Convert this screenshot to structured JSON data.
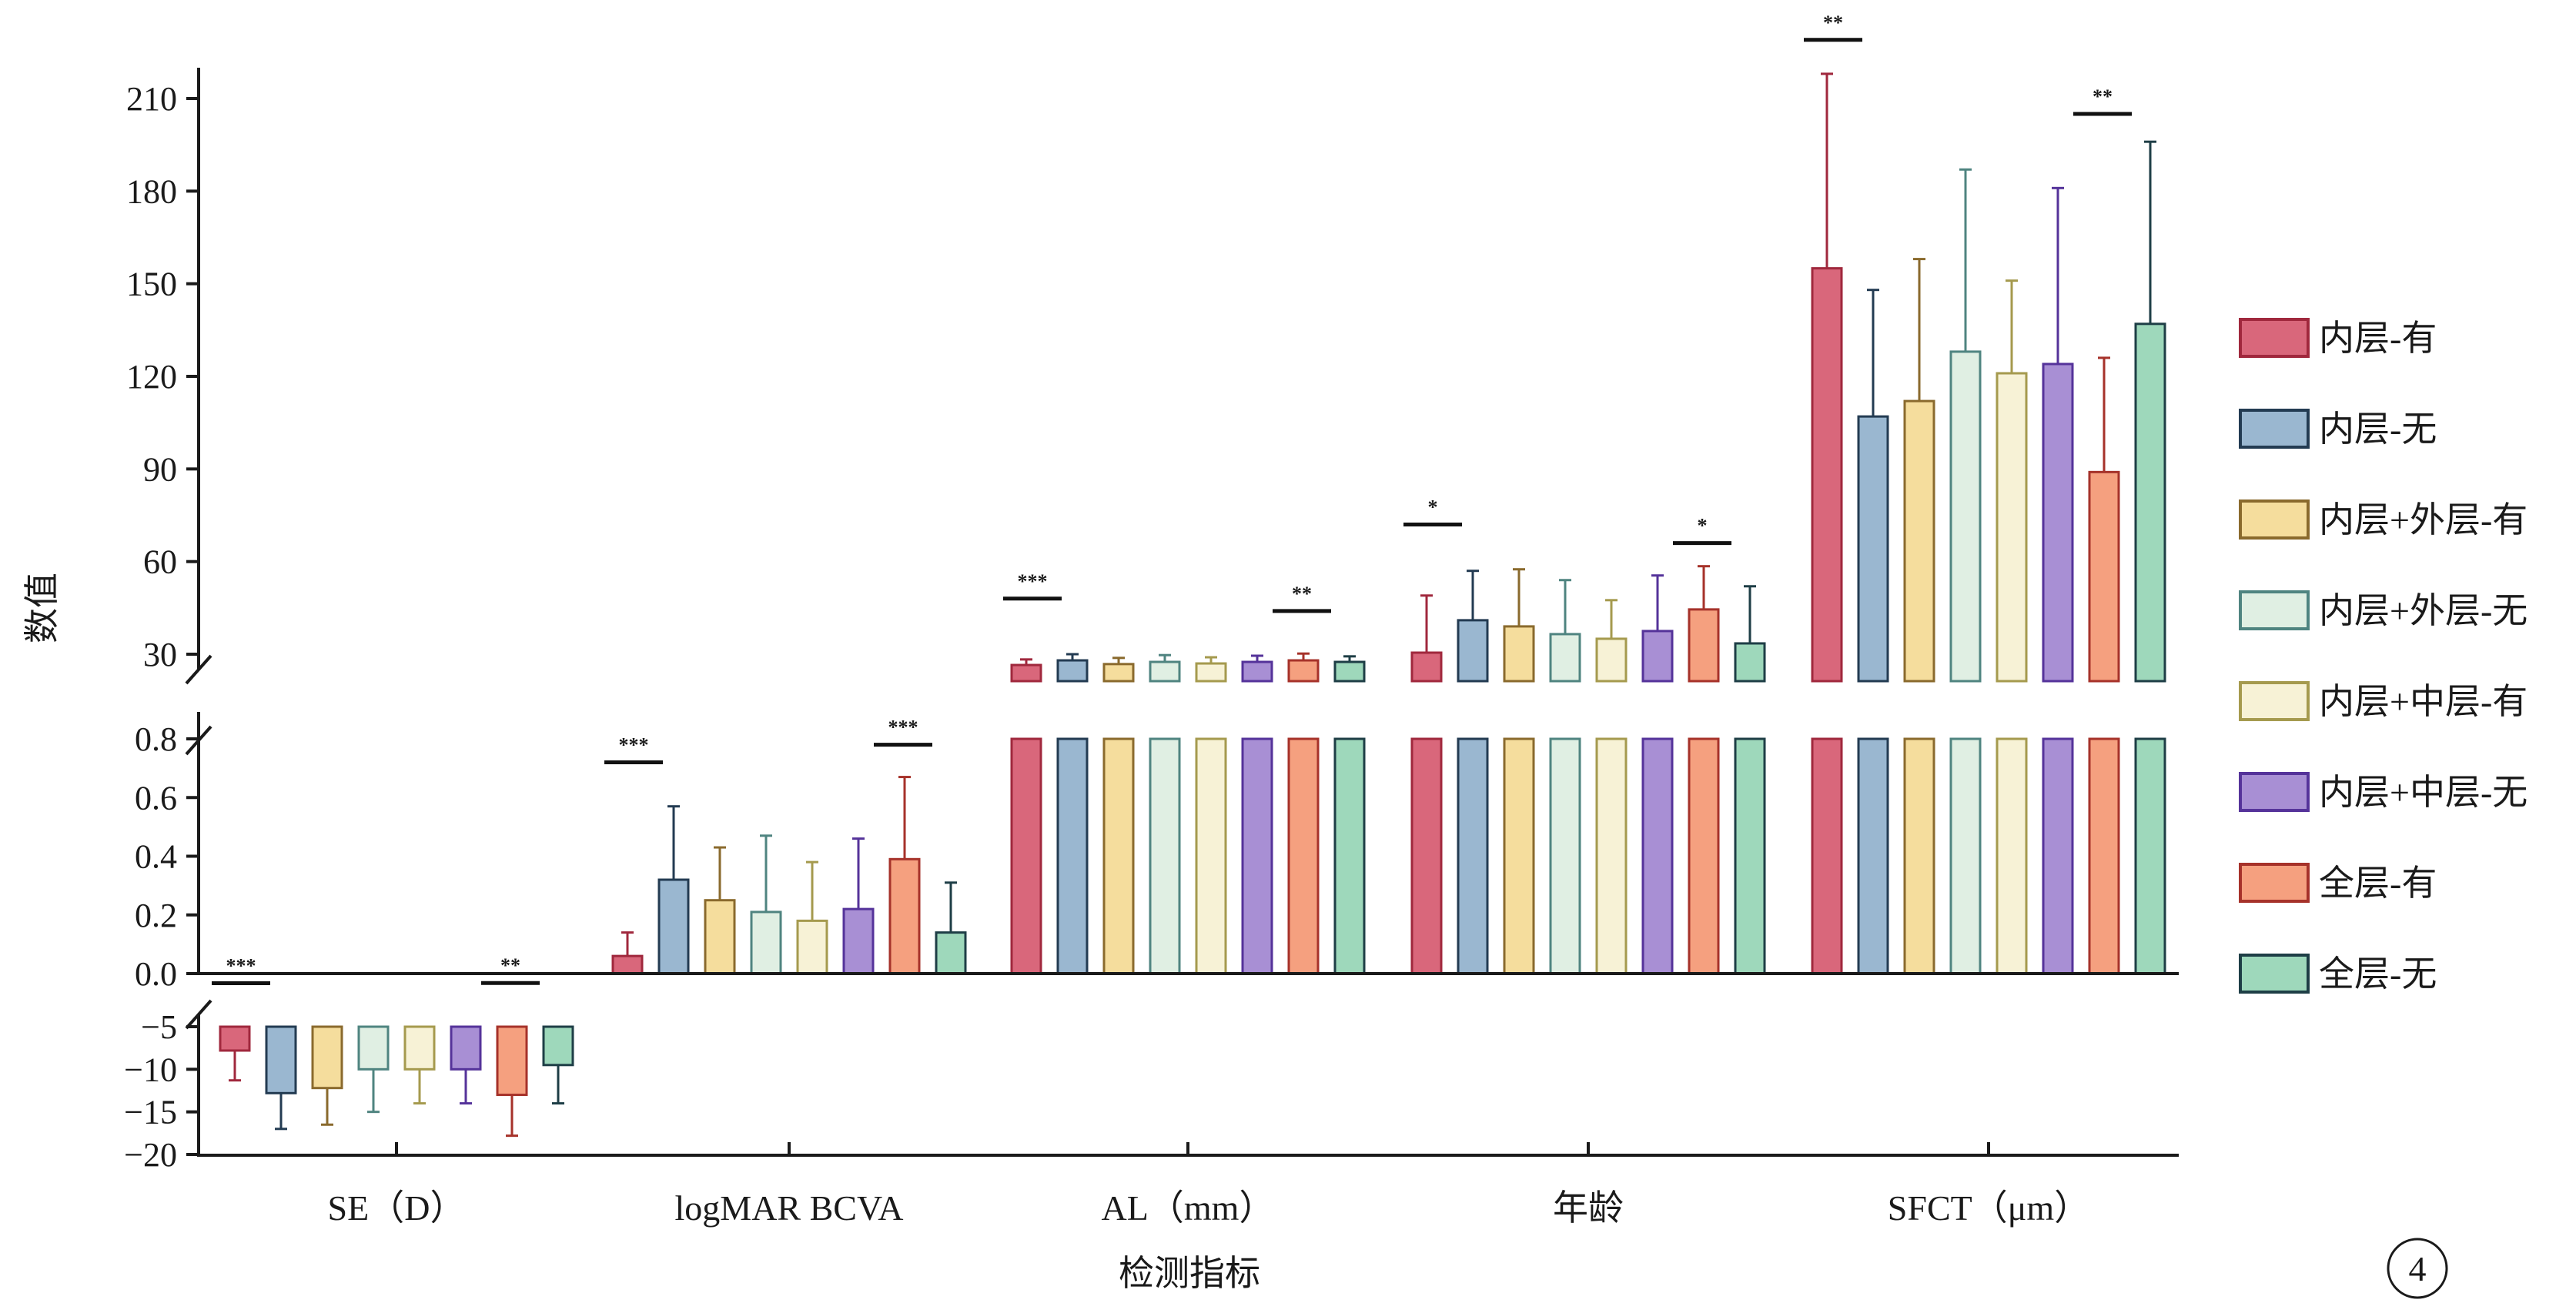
{
  "chart_data": {
    "type": "bar",
    "xlabel": "检测指标",
    "ylabel": "数值",
    "categories": [
      "SE（D）",
      "logMAR BCVA",
      "AL（mm）",
      "年龄",
      "SFCT（μm）"
    ],
    "series": [
      {
        "name": "内层-有",
        "color": "#d9677b",
        "edge": "#a0283d",
        "values": [
          -7.8,
          0.06,
          26.5,
          30.5,
          155
        ],
        "errors": [
          3.5,
          0.08,
          1.8,
          18.5,
          63
        ]
      },
      {
        "name": "内层-无",
        "color": "#9ab7d0",
        "edge": "#233b52",
        "values": [
          -12.8,
          0.32,
          28.0,
          41.0,
          107
        ],
        "errors": [
          4.2,
          0.25,
          2.0,
          16.0,
          41
        ]
      },
      {
        "name": "内层+外层-有",
        "color": "#f5dd9d",
        "edge": "#8a6a2d",
        "values": [
          -12.2,
          0.25,
          26.8,
          39.0,
          112
        ],
        "errors": [
          4.3,
          0.18,
          2.0,
          18.5,
          46
        ]
      },
      {
        "name": "内层+外层-无",
        "color": "#e0efe3",
        "edge": "#4f8480",
        "values": [
          -10.0,
          0.21,
          27.5,
          36.5,
          128
        ],
        "errors": [
          5.0,
          0.26,
          2.2,
          17.5,
          59
        ]
      },
      {
        "name": "内层+中层-有",
        "color": "#f7f2d6",
        "edge": "#a59a4e",
        "values": [
          -10.0,
          0.18,
          27.0,
          35.0,
          121
        ],
        "errors": [
          4.0,
          0.2,
          2.0,
          12.5,
          30
        ]
      },
      {
        "name": "内层+中层-无",
        "color": "#a88fd4",
        "edge": "#55339a",
        "values": [
          -10.0,
          0.22,
          27.5,
          37.5,
          124
        ],
        "errors": [
          4.0,
          0.24,
          2.0,
          18.0,
          57
        ]
      },
      {
        "name": "全层-有",
        "color": "#f5a07f",
        "edge": "#a6322a",
        "values": [
          -13.0,
          0.39,
          28.0,
          44.5,
          89
        ],
        "errors": [
          4.8,
          0.28,
          2.2,
          14.0,
          37
        ]
      },
      {
        "name": "全层-无",
        "color": "#9ed8bb",
        "edge": "#1e3e46",
        "values": [
          -9.5,
          0.14,
          27.5,
          33.5,
          137
        ],
        "errors": [
          4.5,
          0.17,
          1.8,
          18.5,
          59
        ]
      }
    ],
    "y_segments": [
      {
        "range": [
          -20,
          -5
        ],
        "ticks": [
          -5,
          -10,
          -15,
          -20
        ]
      },
      {
        "range": [
          0,
          0.8
        ],
        "ticks": [
          "0.0",
          "0.2",
          "0.4",
          "0.6",
          "0.8"
        ]
      },
      {
        "range": [
          20,
          220
        ],
        "ticks": [
          30,
          60,
          90,
          120,
          150,
          180,
          210
        ]
      }
    ],
    "significance": [
      {
        "category": 0,
        "side": "left",
        "label": "***",
        "y_value": 0.11
      },
      {
        "category": 0,
        "side": "right",
        "label": "**",
        "y_value": 0.13
      },
      {
        "category": 1,
        "side": "left",
        "label": "***",
        "y_value": 0.72
      },
      {
        "category": 1,
        "side": "right",
        "label": "***",
        "y_value": 0.78
      },
      {
        "category": 2,
        "side": "left",
        "label": "***",
        "y_value": 48
      },
      {
        "category": 2,
        "side": "right",
        "label": "**",
        "y_value": 44
      },
      {
        "category": 3,
        "side": "left",
        "label": "*",
        "y_value": 72
      },
      {
        "category": 3,
        "side": "right",
        "label": "*",
        "y_value": 66
      },
      {
        "category": 4,
        "side": "left",
        "label": "**",
        "y_value": 229
      },
      {
        "category": 4,
        "side": "right",
        "label": "**",
        "y_value": 205
      }
    ],
    "legend_position": "right",
    "grid": false
  },
  "panel_label": "4"
}
